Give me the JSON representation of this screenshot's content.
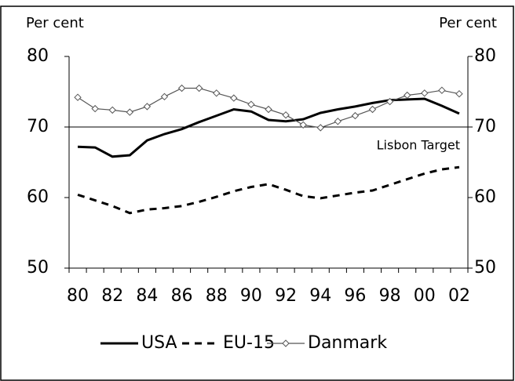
{
  "chart_data": {
    "type": "line",
    "y_label_left": "Per cent",
    "y_label_right": "Per cent",
    "categories": [
      "80",
      null,
      "82",
      null,
      "84",
      null,
      "86",
      null,
      "88",
      null,
      "90",
      null,
      "92",
      null,
      "94",
      null,
      "96",
      null,
      "98",
      null,
      "00",
      null,
      "02"
    ],
    "series": [
      {
        "name": "USA",
        "color": "#000000",
        "style": "solid",
        "values": [
          67.2,
          67.1,
          65.8,
          66.0,
          68.1,
          69.0,
          69.7,
          70.7,
          71.6,
          72.5,
          72.2,
          71.0,
          70.8,
          71.1,
          72.0,
          72.5,
          72.9,
          73.4,
          73.8,
          73.9,
          74.0,
          73.0,
          71.9
        ]
      },
      {
        "name": "EU-15",
        "color": "#000000",
        "style": "dashed",
        "values": [
          60.4,
          59.6,
          58.8,
          57.8,
          58.3,
          58.5,
          58.8,
          59.4,
          60.1,
          60.9,
          61.5,
          61.9,
          61.1,
          60.2,
          59.9,
          60.3,
          60.7,
          61.0,
          61.8,
          62.6,
          63.4,
          64.0,
          64.3
        ]
      },
      {
        "name": "Danmark",
        "color": "#555555",
        "style": "marker",
        "values": [
          74.2,
          72.6,
          72.4,
          72.1,
          72.9,
          74.3,
          75.5,
          75.5,
          74.8,
          74.1,
          73.2,
          72.5,
          71.7,
          70.3,
          69.9,
          70.8,
          71.6,
          72.5,
          73.6,
          74.5,
          74.8,
          75.2,
          74.7
        ]
      }
    ],
    "reference_line": {
      "value": 70,
      "label": "Lisbon Target"
    },
    "ylim": [
      50,
      80
    ],
    "yticks": [
      50,
      60,
      70,
      80
    ],
    "y2lim": [
      50,
      80
    ],
    "y2ticks": [
      50,
      60,
      70,
      80
    ],
    "legend": "bottom"
  }
}
